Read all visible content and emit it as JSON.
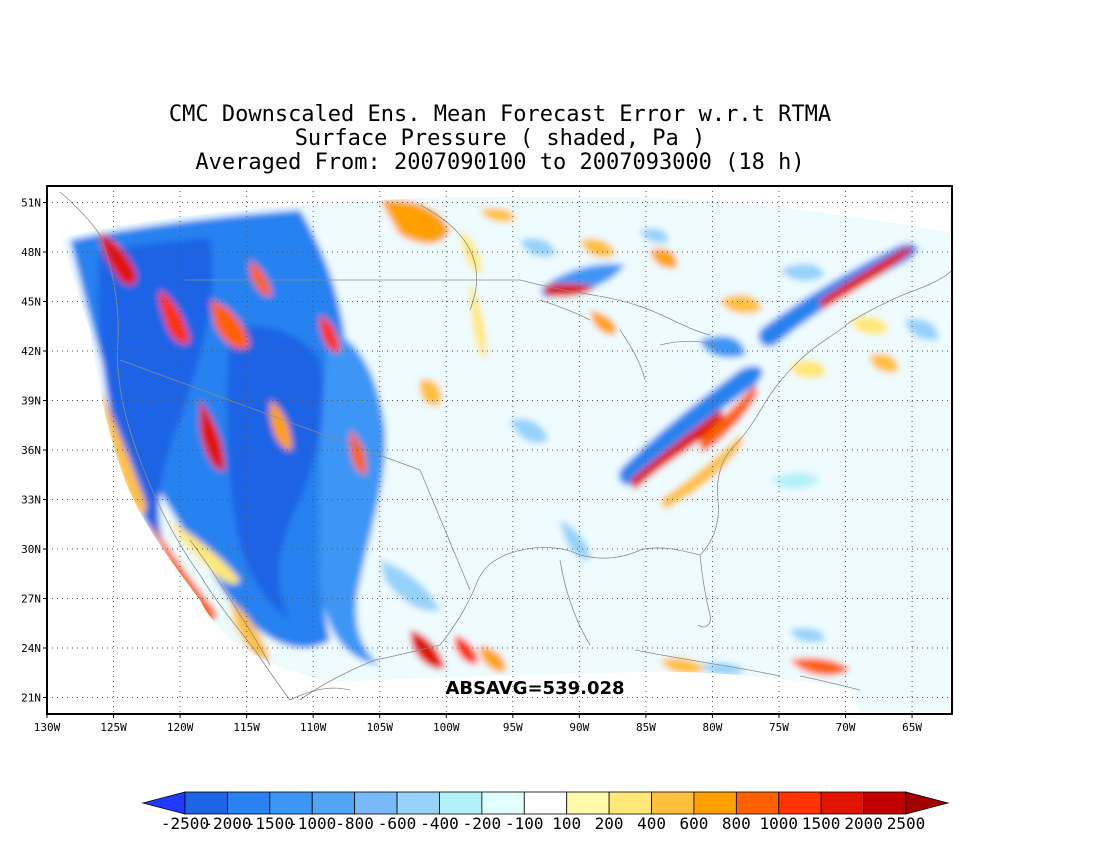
{
  "title": {
    "line1": "CMC Downscaled Ens. Mean Forecast Error w.r.t RTMA",
    "line2": "Surface Pressure ( shaded, Pa )",
    "line3": "Averaged From: 2007090100 to 2007093000 (18 h)"
  },
  "map": {
    "lon_range": [
      -130,
      -62
    ],
    "lat_range": [
      20,
      52
    ],
    "lon_ticks": [
      {
        "lon": -130,
        "label": "130W"
      },
      {
        "lon": -125,
        "label": "125W"
      },
      {
        "lon": -120,
        "label": "120W"
      },
      {
        "lon": -115,
        "label": "115W"
      },
      {
        "lon": -110,
        "label": "110W"
      },
      {
        "lon": -105,
        "label": "105W"
      },
      {
        "lon": -100,
        "label": "100W"
      },
      {
        "lon": -95,
        "label": "95W"
      },
      {
        "lon": -90,
        "label": "90W"
      },
      {
        "lon": -85,
        "label": "85W"
      },
      {
        "lon": -80,
        "label": "80W"
      },
      {
        "lon": -75,
        "label": "75W"
      },
      {
        "lon": -70,
        "label": "70W"
      },
      {
        "lon": -65,
        "label": "65W"
      }
    ],
    "lat_ticks": [
      {
        "lat": 51,
        "label": "51N"
      },
      {
        "lat": 48,
        "label": "48N"
      },
      {
        "lat": 45,
        "label": "45N"
      },
      {
        "lat": 42,
        "label": "42N"
      },
      {
        "lat": 39,
        "label": "39N"
      },
      {
        "lat": 36,
        "label": "36N"
      },
      {
        "lat": 33,
        "label": "33N"
      },
      {
        "lat": 30,
        "label": "30N"
      },
      {
        "lat": 27,
        "label": "27N"
      },
      {
        "lat": 24,
        "label": "24N"
      },
      {
        "lat": 21,
        "label": "21N"
      }
    ],
    "grid": "dotted",
    "annotation": "ABSAVG=539.028"
  },
  "colorbar": {
    "colors": [
      "#1e3cff",
      "#1e64e6",
      "#2882f0",
      "#3c96f5",
      "#50a5f5",
      "#78b9fa",
      "#96d2fa",
      "#b4f0fa",
      "#e1ffff",
      "#ffffff",
      "#fffaaa",
      "#ffe878",
      "#ffc03c",
      "#ffa000",
      "#ff6000",
      "#ff3200",
      "#e11400",
      "#c00000",
      "#a50000"
    ],
    "labels": [
      "-2500",
      "-2000",
      "-1500",
      "-1000",
      "-800",
      "-600",
      "-400",
      "-200",
      "-100",
      "100",
      "200",
      "400",
      "600",
      "800",
      "1000",
      "1500",
      "2000",
      "2500"
    ]
  }
}
